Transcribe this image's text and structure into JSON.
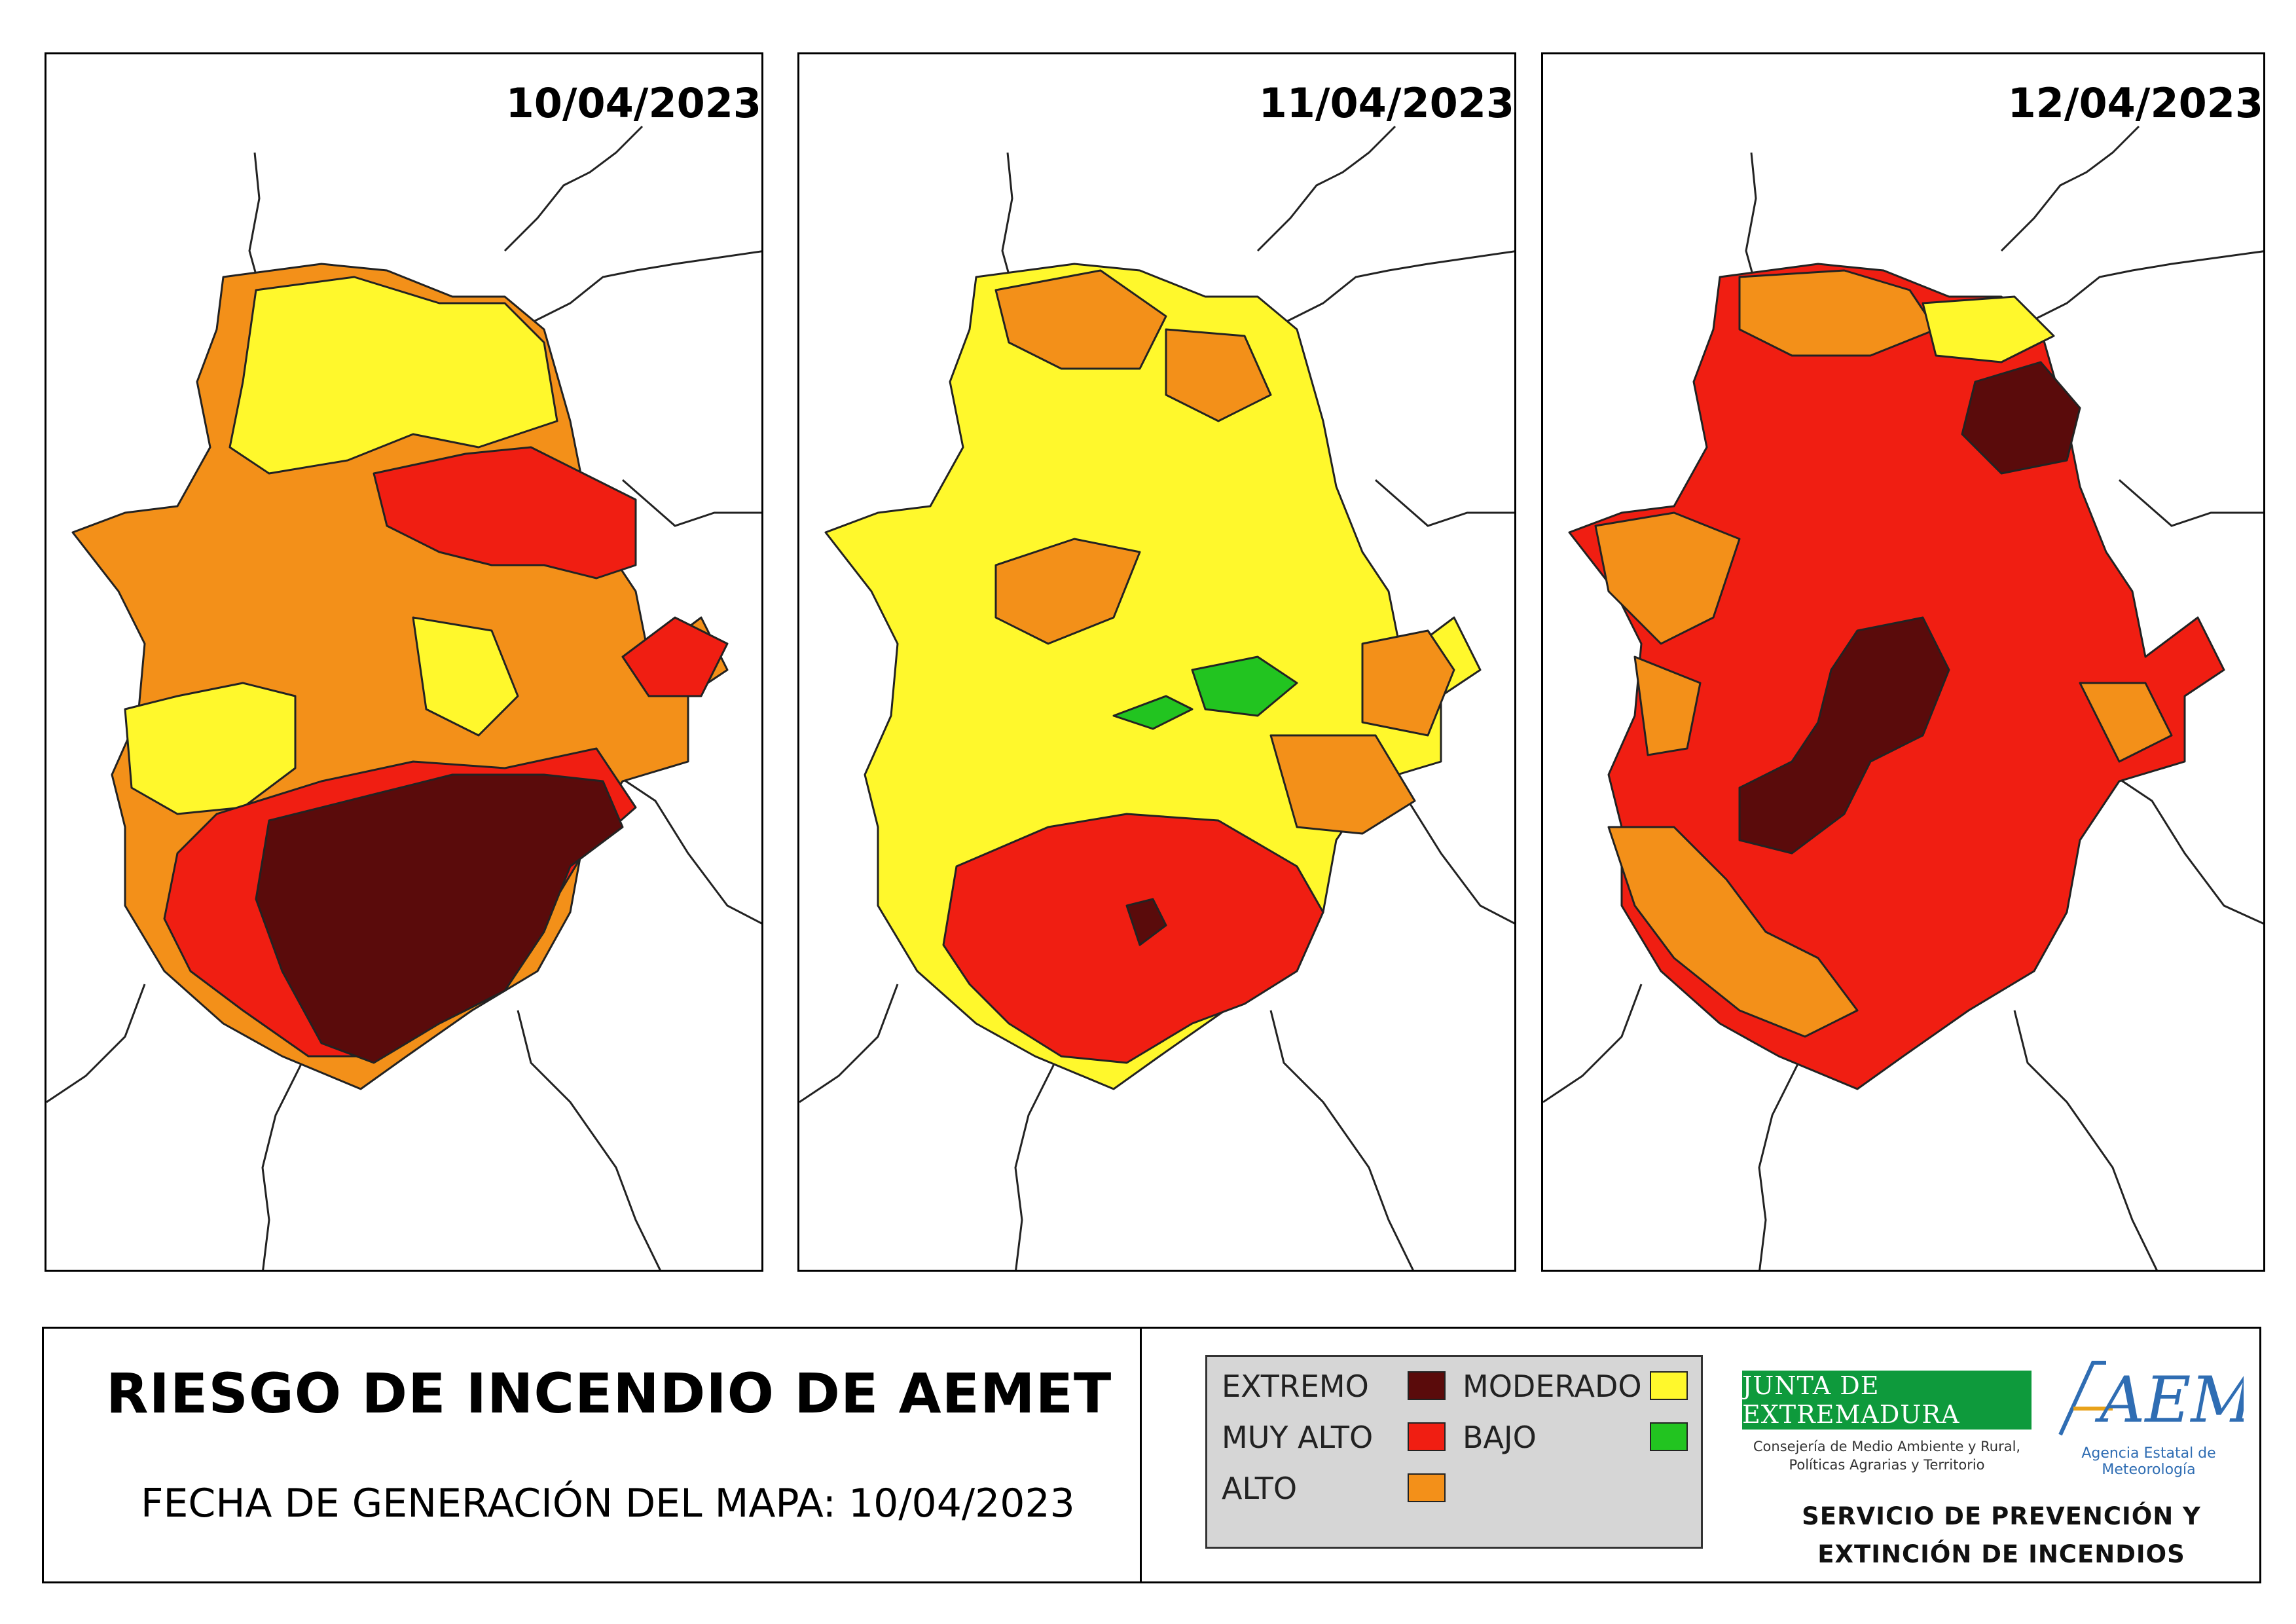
{
  "panels": [
    {
      "date": "10/04/2023"
    },
    {
      "date": "11/04/2023"
    },
    {
      "date": "12/04/2023"
    }
  ],
  "footer": {
    "title": "RIESGO DE INCENDIO DE AEMET",
    "generation_date": "FECHA DE GENERACIÓN DEL MAPA: 10/04/2023"
  },
  "legend": {
    "items": [
      {
        "label": "EXTREMO",
        "color": "#5a0b0b"
      },
      {
        "label": "MUY ALTO",
        "color": "#f01e12"
      },
      {
        "label": "ALTO",
        "color": "#f39019"
      },
      {
        "label": "MODERADO",
        "color": "#fff82c"
      },
      {
        "label": "BAJO",
        "color": "#22c420"
      }
    ]
  },
  "logos": {
    "junta": "JUNTA DE EXTREMADURA",
    "junta_subtitle_1": "Consejería de Medio Ambiente y Rural,",
    "junta_subtitle_2": "Políticas Agrarias y Territorio",
    "aemet": "AEMet",
    "aemet_subtitle": "Agencia Estatal de Meteorología"
  },
  "service": {
    "line1": "SERVICIO DE PREVENCIÓN Y",
    "line2": "EXTINCIÓN DE INCENDIOS"
  }
}
